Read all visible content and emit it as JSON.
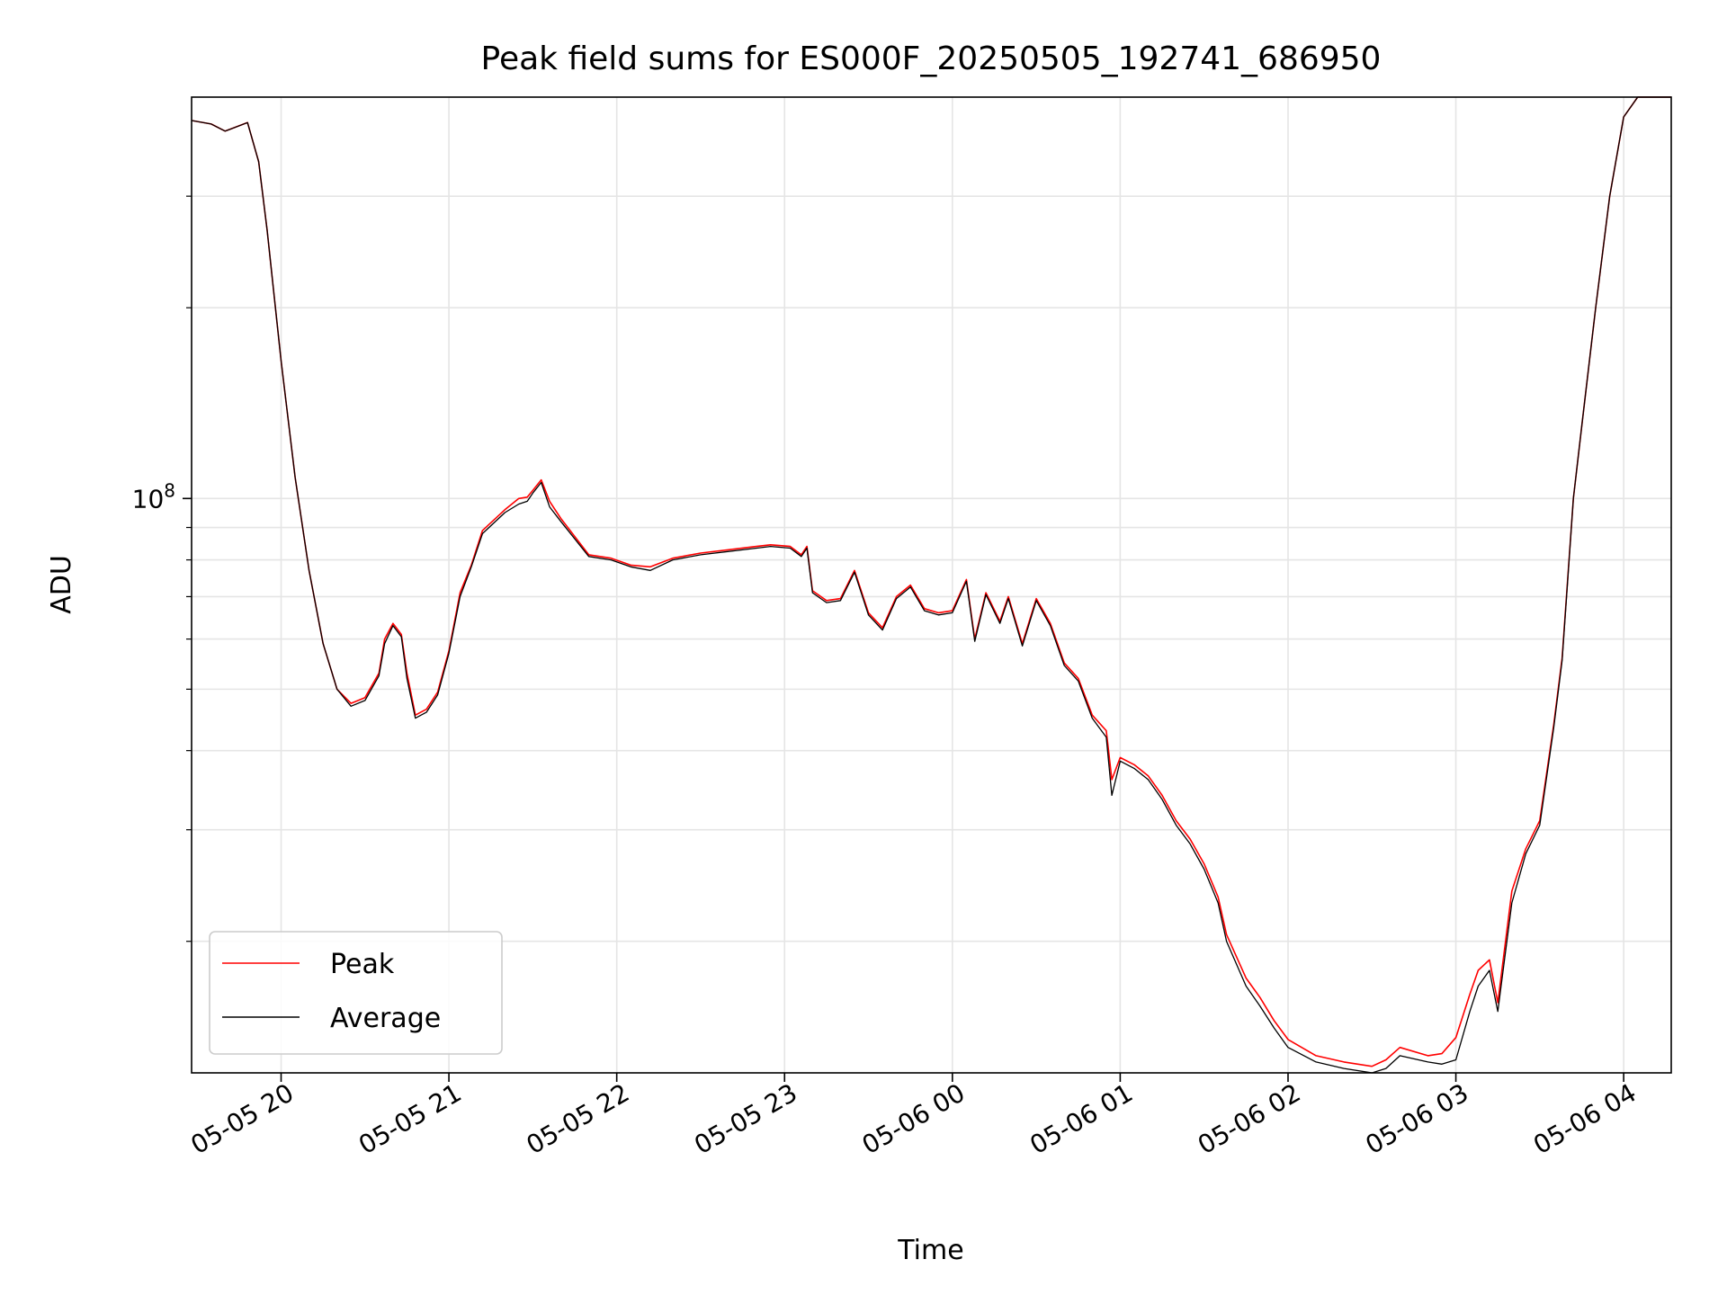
{
  "chart_data": {
    "type": "line",
    "title": "Peak field sums for ES000F_20250505_192741_686950",
    "xlabel": "Time",
    "ylabel": "ADU",
    "y_scale": "log",
    "xlim": [
      "2025-05-05 19:28",
      "2025-05-06 04:17"
    ],
    "ylim": [
      12400000,
      430000000
    ],
    "x_ticks": [
      {
        "at": "2025-05-05 20:00",
        "label": "05-05 20"
      },
      {
        "at": "2025-05-05 21:00",
        "label": "05-05 21"
      },
      {
        "at": "2025-05-05 22:00",
        "label": "05-05 22"
      },
      {
        "at": "2025-05-05 23:00",
        "label": "05-05 23"
      },
      {
        "at": "2025-05-06 00:00",
        "label": "05-06 00"
      },
      {
        "at": "2025-05-06 01:00",
        "label": "05-06 01"
      },
      {
        "at": "2025-05-06 02:00",
        "label": "05-06 02"
      },
      {
        "at": "2025-05-06 03:00",
        "label": "05-06 03"
      },
      {
        "at": "2025-05-06 04:00",
        "label": "05-06 04"
      }
    ],
    "y_major_ticks": [
      {
        "value": 100000000,
        "label_base": "10",
        "label_exp": "8"
      }
    ],
    "y_minor_ticks": [
      20000000,
      30000000,
      40000000,
      50000000,
      60000000,
      70000000,
      80000000,
      90000000,
      200000000,
      300000000
    ],
    "grid": true,
    "legend": {
      "position": "lower-left"
    },
    "colors": {
      "peak": "#ff0000",
      "average": "#000000",
      "grid": "#e5e5e5"
    },
    "series": [
      {
        "name": "Peak",
        "color": "#ff0000",
        "x": [
          "2025-05-05 19:28",
          "2025-05-05 19:35",
          "2025-05-05 19:40",
          "2025-05-05 19:48",
          "2025-05-05 19:52",
          "2025-05-05 19:55",
          "2025-05-05 20:00",
          "2025-05-05 20:05",
          "2025-05-05 20:10",
          "2025-05-05 20:15",
          "2025-05-05 20:20",
          "2025-05-05 20:25",
          "2025-05-05 20:30",
          "2025-05-05 20:35",
          "2025-05-05 20:37",
          "2025-05-05 20:40",
          "2025-05-05 20:43",
          "2025-05-05 20:45",
          "2025-05-05 20:48",
          "2025-05-05 20:52",
          "2025-05-05 20:56",
          "2025-05-05 21:00",
          "2025-05-05 21:04",
          "2025-05-05 21:08",
          "2025-05-05 21:12",
          "2025-05-05 21:20",
          "2025-05-05 21:25",
          "2025-05-05 21:28",
          "2025-05-05 21:30",
          "2025-05-05 21:33",
          "2025-05-05 21:36",
          "2025-05-05 21:40",
          "2025-05-05 21:50",
          "2025-05-05 21:58",
          "2025-05-05 22:05",
          "2025-05-05 22:12",
          "2025-05-05 22:20",
          "2025-05-05 22:30",
          "2025-05-05 22:40",
          "2025-05-05 22:50",
          "2025-05-05 22:55",
          "2025-05-05 23:02",
          "2025-05-05 23:06",
          "2025-05-05 23:08",
          "2025-05-05 23:10",
          "2025-05-05 23:15",
          "2025-05-05 23:20",
          "2025-05-05 23:25",
          "2025-05-05 23:30",
          "2025-05-05 23:35",
          "2025-05-05 23:40",
          "2025-05-05 23:45",
          "2025-05-05 23:50",
          "2025-05-05 23:55",
          "2025-05-06 00:00",
          "2025-05-06 00:05",
          "2025-05-06 00:08",
          "2025-05-06 00:12",
          "2025-05-06 00:17",
          "2025-05-06 00:20",
          "2025-05-06 00:25",
          "2025-05-06 00:30",
          "2025-05-06 00:35",
          "2025-05-06 00:40",
          "2025-05-06 00:45",
          "2025-05-06 00:50",
          "2025-05-06 00:55",
          "2025-05-06 00:57",
          "2025-05-06 01:00",
          "2025-05-06 01:05",
          "2025-05-06 01:10",
          "2025-05-06 01:15",
          "2025-05-06 01:20",
          "2025-05-06 01:25",
          "2025-05-06 01:30",
          "2025-05-06 01:35",
          "2025-05-06 01:38",
          "2025-05-06 01:45",
          "2025-05-06 01:50",
          "2025-05-06 01:55",
          "2025-05-06 02:00",
          "2025-05-06 02:10",
          "2025-05-06 02:20",
          "2025-05-06 02:30",
          "2025-05-06 02:35",
          "2025-05-06 02:40",
          "2025-05-06 02:50",
          "2025-05-06 02:55",
          "2025-05-06 03:00",
          "2025-05-06 03:05",
          "2025-05-06 03:08",
          "2025-05-06 03:12",
          "2025-05-06 03:15",
          "2025-05-06 03:20",
          "2025-05-06 03:25",
          "2025-05-06 03:30",
          "2025-05-06 03:35",
          "2025-05-06 03:38",
          "2025-05-06 03:42",
          "2025-05-06 03:45",
          "2025-05-06 03:50",
          "2025-05-06 03:55",
          "2025-05-06 04:00",
          "2025-05-06 04:05",
          "2025-05-06 04:17"
        ],
        "y": [
          395000000,
          390000000,
          380000000,
          392000000,
          340000000,
          265000000,
          165000000,
          108000000,
          77000000,
          59000000,
          50000000,
          47500000,
          48500000,
          53000000,
          60000000,
          63500000,
          61000000,
          53000000,
          45500000,
          46500000,
          49500000,
          57500000,
          71000000,
          78500000,
          89000000,
          96000000,
          100000000,
          100500000,
          103000000,
          107000000,
          99000000,
          93000000,
          81500000,
          80500000,
          78500000,
          78000000,
          80500000,
          82000000,
          83000000,
          84000000,
          84500000,
          84000000,
          81500000,
          84000000,
          71500000,
          69000000,
          69500000,
          77000000,
          66000000,
          62500000,
          70000000,
          73000000,
          67000000,
          66000000,
          66500000,
          74500000,
          60000000,
          71000000,
          64000000,
          70000000,
          59000000,
          69500000,
          63500000,
          55000000,
          52000000,
          45500000,
          43000000,
          36000000,
          39000000,
          38000000,
          36500000,
          34000000,
          31000000,
          29000000,
          26500000,
          23500000,
          20500000,
          17500000,
          16300000,
          15000000,
          14000000,
          13200000,
          12900000,
          12700000,
          13000000,
          13600000,
          13200000,
          13300000,
          14100000,
          16500000,
          18000000,
          18700000,
          16000000,
          24000000,
          28000000,
          31000000,
          44000000,
          56000000,
          100000000,
          130000000,
          200000000,
          300000000,
          400000000,
          430000000,
          430000000
        ]
      },
      {
        "name": "Average",
        "color": "#000000",
        "x": [
          "2025-05-05 19:28",
          "2025-05-05 19:35",
          "2025-05-05 19:40",
          "2025-05-05 19:48",
          "2025-05-05 19:52",
          "2025-05-05 19:55",
          "2025-05-05 20:00",
          "2025-05-05 20:05",
          "2025-05-05 20:10",
          "2025-05-05 20:15",
          "2025-05-05 20:20",
          "2025-05-05 20:25",
          "2025-05-05 20:30",
          "2025-05-05 20:35",
          "2025-05-05 20:37",
          "2025-05-05 20:40",
          "2025-05-05 20:43",
          "2025-05-05 20:45",
          "2025-05-05 20:48",
          "2025-05-05 20:52",
          "2025-05-05 20:56",
          "2025-05-05 21:00",
          "2025-05-05 21:04",
          "2025-05-05 21:08",
          "2025-05-05 21:12",
          "2025-05-05 21:20",
          "2025-05-05 21:25",
          "2025-05-05 21:28",
          "2025-05-05 21:30",
          "2025-05-05 21:33",
          "2025-05-05 21:36",
          "2025-05-05 21:40",
          "2025-05-05 21:50",
          "2025-05-05 21:58",
          "2025-05-05 22:05",
          "2025-05-05 22:12",
          "2025-05-05 22:20",
          "2025-05-05 22:30",
          "2025-05-05 22:40",
          "2025-05-05 22:50",
          "2025-05-05 22:55",
          "2025-05-05 23:02",
          "2025-05-05 23:06",
          "2025-05-05 23:08",
          "2025-05-05 23:10",
          "2025-05-05 23:15",
          "2025-05-05 23:20",
          "2025-05-05 23:25",
          "2025-05-05 23:30",
          "2025-05-05 23:35",
          "2025-05-05 23:40",
          "2025-05-05 23:45",
          "2025-05-05 23:50",
          "2025-05-05 23:55",
          "2025-05-06 00:00",
          "2025-05-06 00:05",
          "2025-05-06 00:08",
          "2025-05-06 00:12",
          "2025-05-06 00:17",
          "2025-05-06 00:20",
          "2025-05-06 00:25",
          "2025-05-06 00:30",
          "2025-05-06 00:35",
          "2025-05-06 00:40",
          "2025-05-06 00:45",
          "2025-05-06 00:50",
          "2025-05-06 00:55",
          "2025-05-06 00:57",
          "2025-05-06 01:00",
          "2025-05-06 01:05",
          "2025-05-06 01:10",
          "2025-05-06 01:15",
          "2025-05-06 01:20",
          "2025-05-06 01:25",
          "2025-05-06 01:30",
          "2025-05-06 01:35",
          "2025-05-06 01:38",
          "2025-05-06 01:45",
          "2025-05-06 01:50",
          "2025-05-06 01:55",
          "2025-05-06 02:00",
          "2025-05-06 02:10",
          "2025-05-06 02:20",
          "2025-05-06 02:30",
          "2025-05-06 02:35",
          "2025-05-06 02:40",
          "2025-05-06 02:50",
          "2025-05-06 02:55",
          "2025-05-06 03:00",
          "2025-05-06 03:05",
          "2025-05-06 03:08",
          "2025-05-06 03:12",
          "2025-05-06 03:15",
          "2025-05-06 03:20",
          "2025-05-06 03:25",
          "2025-05-06 03:30",
          "2025-05-06 03:35",
          "2025-05-06 03:38",
          "2025-05-06 03:42",
          "2025-05-06 03:45",
          "2025-05-06 03:50",
          "2025-05-06 03:55",
          "2025-05-06 04:00",
          "2025-05-06 04:05",
          "2025-05-06 04:17"
        ],
        "y": [
          395000000,
          390000000,
          380000000,
          392000000,
          340000000,
          265000000,
          165000000,
          108000000,
          77000000,
          59000000,
          50000000,
          47000000,
          48000000,
          52500000,
          59000000,
          63000000,
          60500000,
          52000000,
          45000000,
          46000000,
          49000000,
          57000000,
          70000000,
          78000000,
          88000000,
          95000000,
          98000000,
          99000000,
          102000000,
          106000000,
          97000000,
          92000000,
          81000000,
          80000000,
          78000000,
          77000000,
          80000000,
          81500000,
          82500000,
          83500000,
          84000000,
          83500000,
          81000000,
          83500000,
          71000000,
          68500000,
          69000000,
          76500000,
          65500000,
          62000000,
          69500000,
          72500000,
          66500000,
          65500000,
          66000000,
          74000000,
          59500000,
          70500000,
          63500000,
          69500000,
          58500000,
          69000000,
          63000000,
          54500000,
          51500000,
          45000000,
          42000000,
          34000000,
          38500000,
          37500000,
          36000000,
          33500000,
          30500000,
          28500000,
          26000000,
          23000000,
          20000000,
          17000000,
          15800000,
          14600000,
          13600000,
          12900000,
          12600000,
          12400000,
          12600000,
          13200000,
          12900000,
          12800000,
          13000000,
          15500000,
          17000000,
          18000000,
          15500000,
          23000000,
          27500000,
          30500000,
          43500000,
          55500000,
          100000000,
          130000000,
          200000000,
          300000000,
          400000000,
          430000000,
          430000000
        ]
      }
    ]
  }
}
